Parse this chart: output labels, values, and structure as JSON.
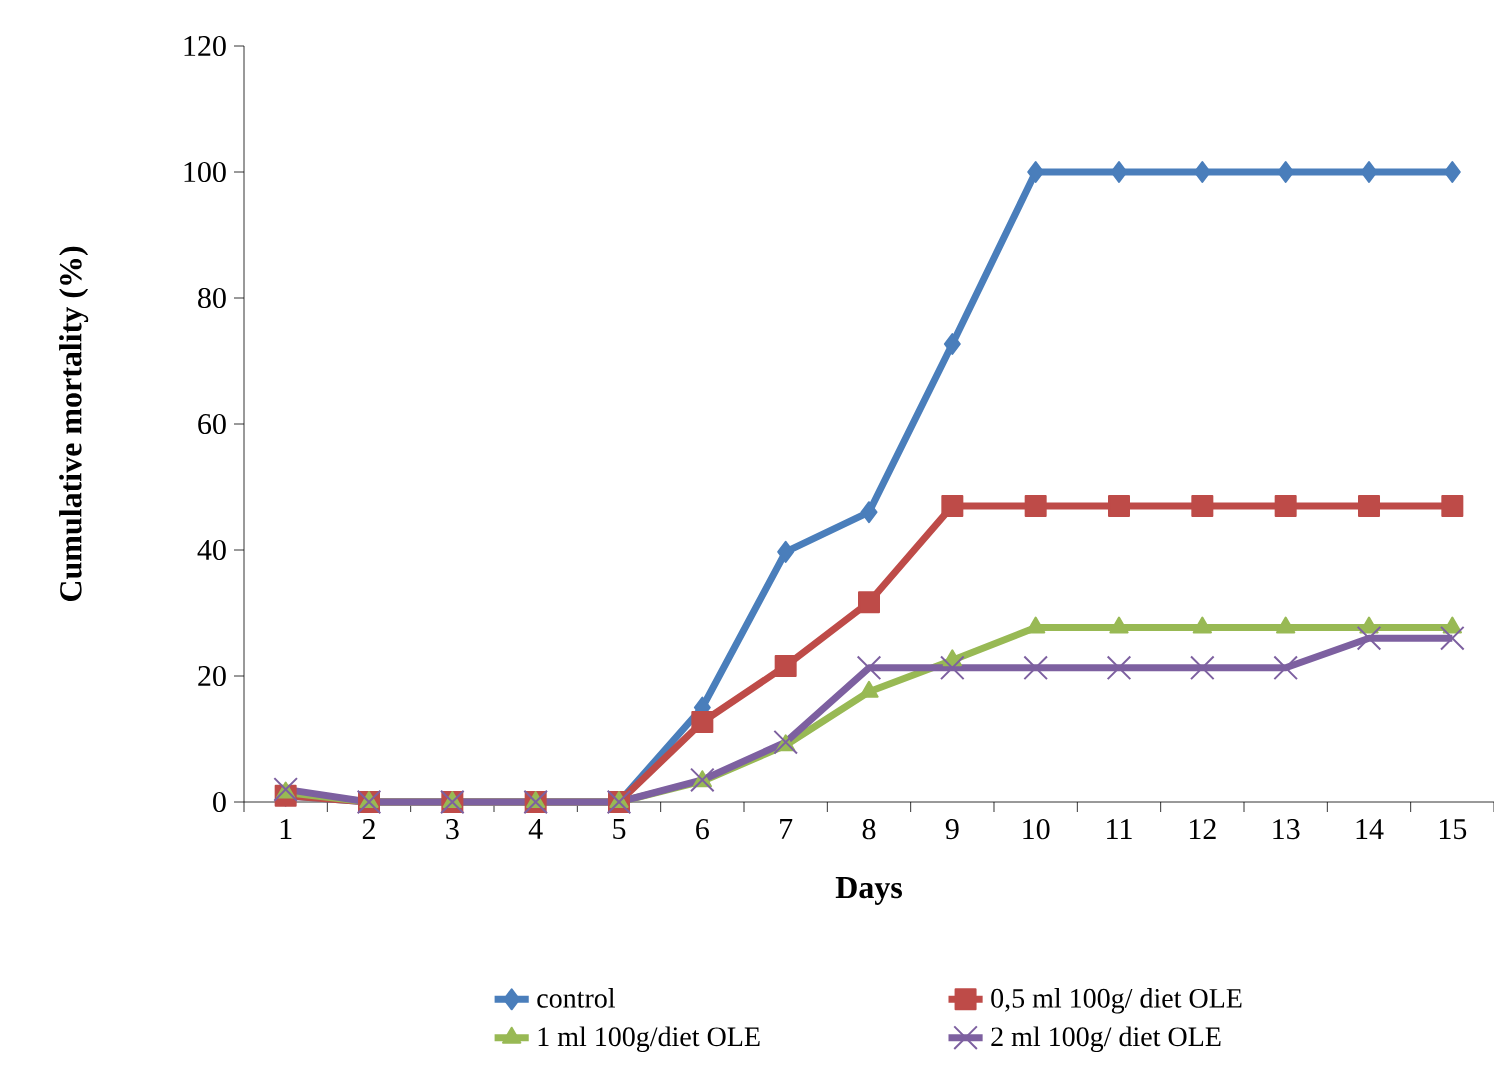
{
  "chart_data": {
    "type": "line",
    "xlabel": "Days",
    "ylabel": "Cumulative mortality (%)",
    "categories": [
      "1",
      "2",
      "3",
      "4",
      "5",
      "6",
      "7",
      "8",
      "9",
      "10",
      "11",
      "12",
      "13",
      "14",
      "15"
    ],
    "ylim": [
      0,
      120
    ],
    "yticks": [
      0,
      20,
      40,
      60,
      80,
      100,
      120
    ],
    "grid": false,
    "legend": "bottom",
    "line_style": "solid",
    "series": [
      {
        "name": "control",
        "color": "#4a7ebb",
        "marker": "diamond",
        "values": [
          1,
          0,
          0,
          0,
          0,
          15,
          39.7,
          46,
          72.7,
          100,
          100,
          100,
          100,
          100,
          100
        ]
      },
      {
        "name": "0,5 ml 100g/ diet OLE",
        "color": "#be4b48",
        "marker": "square",
        "values": [
          1,
          0,
          0,
          0,
          0,
          12.7,
          21.6,
          31.7,
          47,
          47,
          47,
          47,
          47,
          47,
          47
        ]
      },
      {
        "name": "1 ml 100g/diet OLE",
        "color": "#98b954",
        "marker": "triangle",
        "values": [
          1.5,
          0,
          0,
          0,
          0,
          3.3,
          9,
          17.5,
          22.5,
          27.7,
          27.7,
          27.7,
          27.7,
          27.7,
          27.7
        ]
      },
      {
        "name": "2 ml 100g/ diet OLE",
        "color": "#7d60a0",
        "marker": "cross",
        "values": [
          2,
          0,
          0,
          0,
          0,
          3.5,
          9.5,
          21.3,
          21.3,
          21.3,
          21.3,
          21.3,
          21.3,
          26,
          26
        ]
      }
    ]
  }
}
